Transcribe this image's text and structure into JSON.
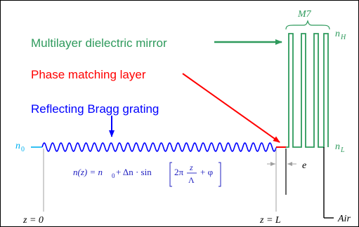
{
  "labels": {
    "mirror": "Multilayer dielectric mirror",
    "phase_layer": "Phase matching layer",
    "bragg": "Reflecting Bragg grating",
    "m_count": "M7",
    "n_high": "n",
    "n_high_sub": "H",
    "n_low": "n",
    "n_low_sub": "L",
    "n_zero": "n",
    "n_zero_sub": "0",
    "e": "e",
    "z0": "z = 0",
    "zL": "z = L",
    "air": "Air"
  },
  "formula": {
    "lhs": "n(z) = n",
    "lhs_sub": "0",
    "plus": " + Δn · sin",
    "two_pi": "2π",
    "frac_num": "z",
    "frac_den": "Λ",
    "tail": "+ φ"
  },
  "colors": {
    "mirror": "#2e9a5c",
    "phase_layer": "#ff0000",
    "bragg": "#0000ff",
    "n_zero": "#00b0f0",
    "formula": "#2020c0",
    "black": "#000000",
    "guide": "#a0a0a0"
  }
}
